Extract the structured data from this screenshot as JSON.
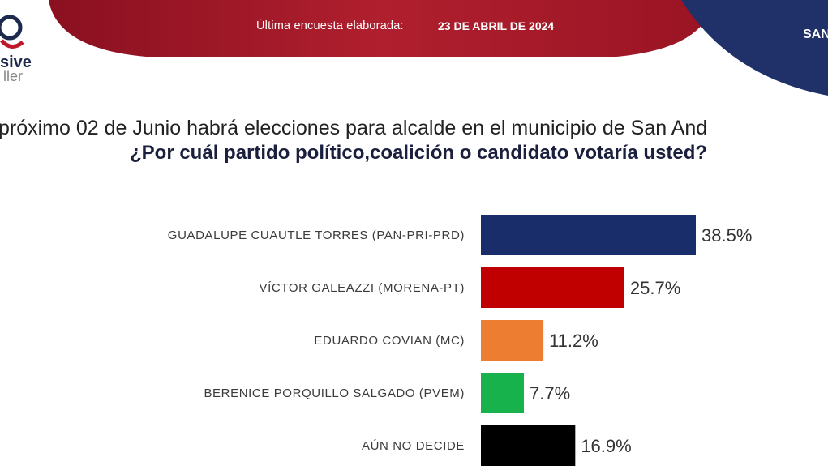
{
  "header": {
    "survey_label": "Última encuesta elaborada:",
    "survey_date": "23 DE ABRIL DE 2024",
    "right_text": "SAN"
  },
  "logo": {
    "line1": "sive",
    "line2": "ller"
  },
  "question": {
    "line1": "próximo 02 de Junio habrá elecciones para alcalde en el municipio de San And",
    "line2": "¿Por cuál partido político,coalición o candidato votaría usted?"
  },
  "colors": {
    "header_red": "#b01f2e",
    "header_navy": "#1f3168"
  },
  "chart_data": {
    "type": "bar",
    "orientation": "horizontal",
    "categories": [
      "GUADALUPE CUAUTLE TORRES (PAN-PRI-PRD)",
      "VÍCTOR GALEAZZI (MORENA-PT)",
      "EDUARDO COVIAN (MC)",
      "BERENICE PORQUILLO SALGADO (PVEM)",
      "AÚN NO DECIDE"
    ],
    "values": [
      38.5,
      25.7,
      11.2,
      7.7,
      16.9
    ],
    "value_labels": [
      "38.5%",
      "25.7%",
      "11.2%",
      "7.7%",
      "16.9%"
    ],
    "colors": [
      "#192d6b",
      "#c00000",
      "#ed7d31",
      "#17b24b",
      "#000000"
    ],
    "xlim": [
      0,
      38.5
    ],
    "grid": false,
    "legend": "none"
  }
}
